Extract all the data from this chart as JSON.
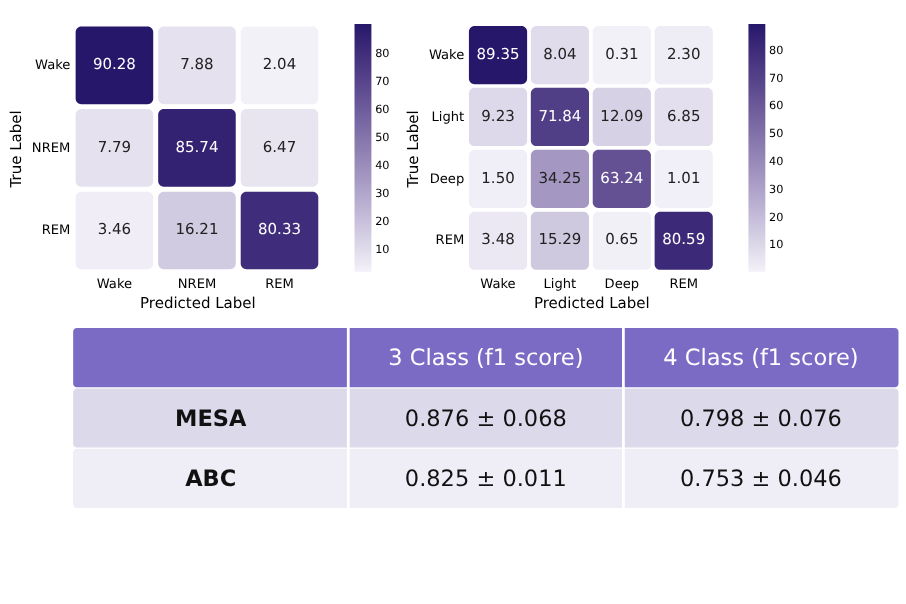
{
  "chart_data": [
    {
      "type": "heatmap",
      "xlabel": "Predicted Label",
      "ylabel": "True Label",
      "categories": [
        "Wake",
        "NREM",
        "REM"
      ],
      "y_categories": [
        "Wake",
        "NREM",
        "REM"
      ],
      "cells": [
        [
          90.28,
          7.88,
          2.04
        ],
        [
          7.79,
          85.74,
          6.47
        ],
        [
          3.46,
          16.21,
          80.33
        ]
      ],
      "cell_labels": [
        [
          "90.28",
          "7.88",
          "2.04"
        ],
        [
          "7.79",
          "85.74",
          "6.47"
        ],
        [
          "3.46",
          "16.21",
          "80.33"
        ]
      ],
      "clim": [
        2.04,
        90.28
      ],
      "cticks": [
        10,
        20,
        30,
        40,
        50,
        60,
        70,
        80
      ],
      "colors": [
        "#f3f1f8",
        "#27176b"
      ]
    },
    {
      "type": "heatmap",
      "xlabel": "Predicted Label",
      "ylabel": "True Label",
      "categories": [
        "Wake",
        "Light",
        "Deep",
        "REM"
      ],
      "y_categories": [
        "Wake",
        "Light",
        "Deep",
        "REM"
      ],
      "cells": [
        [
          89.35,
          8.04,
          0.31,
          2.3
        ],
        [
          9.23,
          71.84,
          12.09,
          6.85
        ],
        [
          1.5,
          34.25,
          63.24,
          1.01
        ],
        [
          3.48,
          15.29,
          0.65,
          80.59
        ]
      ],
      "cell_labels": [
        [
          "89.35",
          "8.04",
          "0.31",
          "2.30"
        ],
        [
          "9.23",
          "71.84",
          "12.09",
          "6.85"
        ],
        [
          "1.50",
          "34.25",
          "63.24",
          "1.01"
        ],
        [
          "3.48",
          "15.29",
          "0.65",
          "80.59"
        ]
      ],
      "clim": [
        0.31,
        89.35
      ],
      "cticks": [
        10,
        20,
        30,
        40,
        50,
        60,
        70,
        80
      ],
      "colors": [
        "#f3f1f8",
        "#27176b"
      ]
    },
    {
      "type": "other",
      "categories": [
        "3 Class (f1 score)",
        "4 Class (f1 score)"
      ],
      "y_categories": [
        "MESA",
        "ABC"
      ],
      "cell_labels": [
        [
          "0.876 ± 0.068",
          "0.798 ± 0.076"
        ],
        [
          "0.825 ± 0.011",
          "0.753 ± 0.046"
        ]
      ]
    }
  ]
}
